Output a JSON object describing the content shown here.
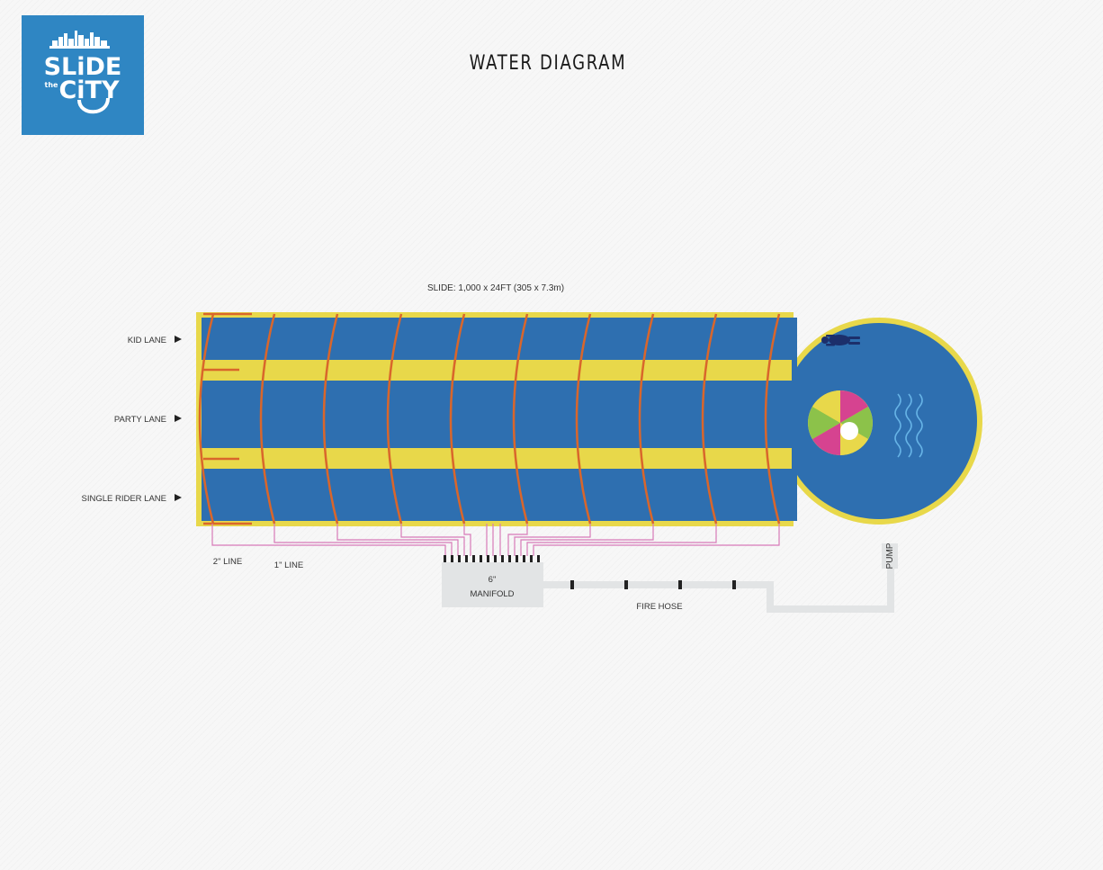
{
  "page": {
    "title": "WATER DIAGRAM"
  },
  "logo": {
    "line1": "SLiDE",
    "line2_small": "the",
    "line2": "CiTY"
  },
  "diagram": {
    "slide_label": "SLIDE: 1,000 x 24FT (305 x 7.3m)",
    "lanes": [
      {
        "label": "KID LANE"
      },
      {
        "label": "PARTY LANE"
      },
      {
        "label": "SINGLE RIDER LANE"
      }
    ],
    "line_2in_label": "2\" LINE",
    "line_1in_label": "1\" LINE",
    "manifold_size": "6\"",
    "manifold_label": "MANIFOLD",
    "fire_hose_label": "FIRE HOSE",
    "pump_label": "PUMP"
  },
  "colors": {
    "slide_blue": "#2e6fb0",
    "edge_yellow": "#e8d84a",
    "sprinkler_orange": "#d9662b",
    "supply_pink": "#d77ab8",
    "hose_gray": "#e2e4e5",
    "logo_blue": "#2f86c3"
  },
  "icons": {
    "beach_ball": "beach-ball-icon",
    "swimmer": "swimmer-icon",
    "waves": "waves-icon",
    "lane_arrow": "triangle-right-icon"
  }
}
